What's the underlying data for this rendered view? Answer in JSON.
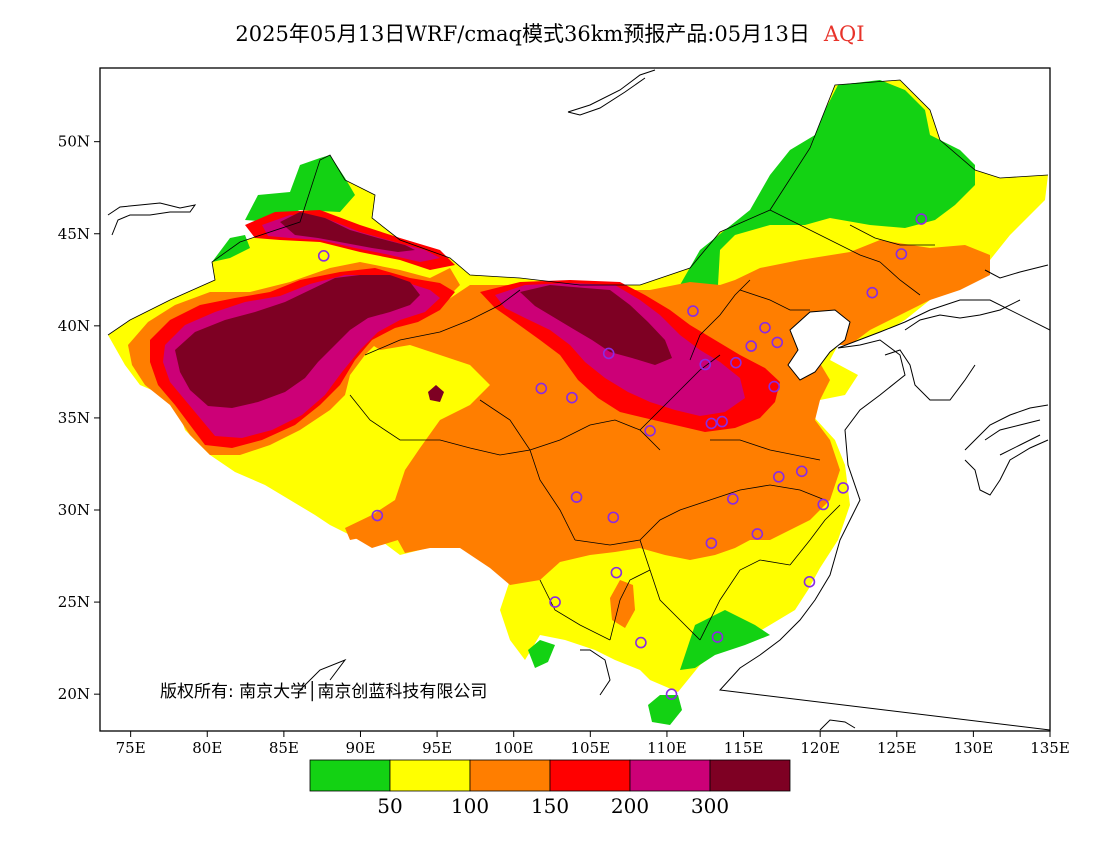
{
  "title": {
    "main": "2025年05月13日WRF/cmaq模式36km预报产品:05月13日",
    "variable": "AQI"
  },
  "map": {
    "lon_range": [
      73,
      135
    ],
    "lat_range": [
      18,
      54
    ],
    "x_ticks": [
      {
        "lon": 75,
        "label": "75E"
      },
      {
        "lon": 80,
        "label": "80E"
      },
      {
        "lon": 85,
        "label": "85E"
      },
      {
        "lon": 90,
        "label": "90E"
      },
      {
        "lon": 95,
        "label": "95E"
      },
      {
        "lon": 100,
        "label": "100E"
      },
      {
        "lon": 105,
        "label": "105E"
      },
      {
        "lon": 110,
        "label": "110E"
      },
      {
        "lon": 115,
        "label": "115E"
      },
      {
        "lon": 120,
        "label": "120E"
      },
      {
        "lon": 125,
        "label": "125E"
      },
      {
        "lon": 130,
        "label": "130E"
      },
      {
        "lon": 135,
        "label": "135E"
      }
    ],
    "y_ticks": [
      {
        "lat": 20,
        "label": "20N"
      },
      {
        "lat": 25,
        "label": "25N"
      },
      {
        "lat": 30,
        "label": "30N"
      },
      {
        "lat": 35,
        "label": "35N"
      },
      {
        "lat": 40,
        "label": "40N"
      },
      {
        "lat": 45,
        "label": "45N"
      },
      {
        "lat": 50,
        "label": "50N"
      }
    ],
    "copyright": "版权所有: 南京大学│南京创蓝科技有限公司"
  },
  "colorbar": {
    "colors": [
      "#13d213",
      "#ffff00",
      "#ff7e00",
      "#ff0000",
      "#cc0077",
      "#7e0023"
    ],
    "labels": [
      "50",
      "100",
      "150",
      "200",
      "300"
    ]
  },
  "stations": [
    [
      116.4,
      39.9
    ],
    [
      117.2,
      39.1
    ],
    [
      114.5,
      38.0
    ],
    [
      112.5,
      37.9
    ],
    [
      111.7,
      40.8
    ],
    [
      123.4,
      41.8
    ],
    [
      125.3,
      43.9
    ],
    [
      126.6,
      45.8
    ],
    [
      117.0,
      36.7
    ],
    [
      113.6,
      34.8
    ],
    [
      112.9,
      34.7
    ],
    [
      108.9,
      34.3
    ],
    [
      106.2,
      38.5
    ],
    [
      103.8,
      36.1
    ],
    [
      101.8,
      36.6
    ],
    [
      87.6,
      43.8
    ],
    [
      91.1,
      29.7
    ],
    [
      104.1,
      30.7
    ],
    [
      106.5,
      29.6
    ],
    [
      106.7,
      26.6
    ],
    [
      102.7,
      25.0
    ],
    [
      108.3,
      22.8
    ],
    [
      113.3,
      23.1
    ],
    [
      110.3,
      20.0
    ],
    [
      112.9,
      28.2
    ],
    [
      114.3,
      30.6
    ],
    [
      115.9,
      28.7
    ],
    [
      117.3,
      31.8
    ],
    [
      118.8,
      32.1
    ],
    [
      120.2,
      30.3
    ],
    [
      121.5,
      31.2
    ],
    [
      119.3,
      26.1
    ],
    [
      115.5,
      38.9
    ]
  ]
}
